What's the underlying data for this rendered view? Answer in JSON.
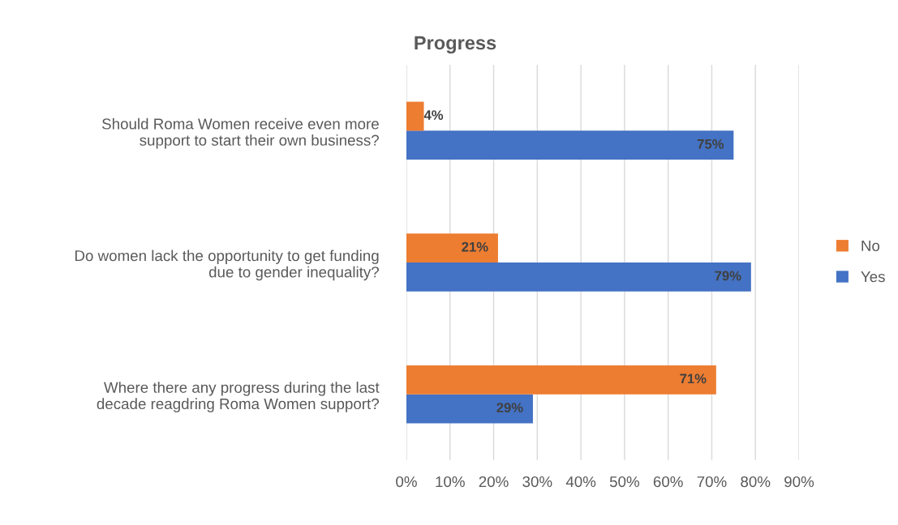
{
  "chart_data": {
    "type": "bar",
    "orientation": "horizontal",
    "title": "Progress",
    "categories": [
      "Should Roma Women receive even more\nsupport to start their own business?",
      "Do women lack the opportunity to get funding\ndue to gender inequality?",
      "Where there any progress during the last\ndecade reagdring Roma Women support?"
    ],
    "series": [
      {
        "name": "Yes",
        "color": "#4472c4",
        "values": [
          75,
          79,
          29
        ],
        "value_labels": [
          "75%",
          "79%",
          "29%"
        ]
      },
      {
        "name": "No",
        "color": "#ed7d31",
        "values": [
          4,
          21,
          71
        ],
        "value_labels": [
          "4%",
          "21%",
          "71%"
        ]
      }
    ],
    "xlim": [
      0,
      90
    ],
    "xticks": [
      {
        "value": 0,
        "label": "0%"
      },
      {
        "value": 10,
        "label": "10%"
      },
      {
        "value": 20,
        "label": "20%"
      },
      {
        "value": 30,
        "label": "30%"
      },
      {
        "value": 40,
        "label": "40%"
      },
      {
        "value": 50,
        "label": "50%"
      },
      {
        "value": 60,
        "label": "60%"
      },
      {
        "value": 70,
        "label": "70%"
      },
      {
        "value": 80,
        "label": "80%"
      },
      {
        "value": 90,
        "label": "90%"
      }
    ],
    "grid": "x",
    "legend": "right"
  }
}
